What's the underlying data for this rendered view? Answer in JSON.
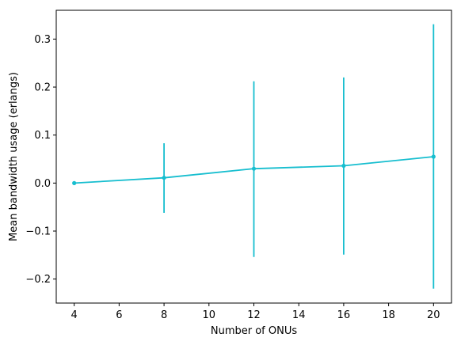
{
  "chart_data": {
    "type": "line",
    "xlabel": "Number of ONUs",
    "ylabel": "Mean bandwidth usage (erlangs)",
    "xlim": [
      3.2,
      20.8
    ],
    "ylim": [
      -0.25,
      0.36
    ],
    "x_ticks": [
      4,
      6,
      8,
      10,
      12,
      14,
      16,
      18,
      20
    ],
    "y_ticks": [
      -0.2,
      -0.1,
      0.0,
      0.1,
      0.2,
      0.3
    ],
    "x_tick_labels": [
      "4",
      "6",
      "8",
      "10",
      "12",
      "14",
      "16",
      "18",
      "20"
    ],
    "y_tick_labels": [
      "−0.2",
      "−0.1",
      "0.0",
      "0.1",
      "0.2",
      "0.3"
    ],
    "grid": false,
    "series": [
      {
        "color": "#17becf",
        "x": [
          4,
          8,
          12,
          16,
          20
        ],
        "y": [
          0.0,
          0.011,
          0.03,
          0.036,
          0.055
        ],
        "error_low": [
          0.0,
          -0.062,
          -0.154,
          -0.149,
          -0.22
        ],
        "error_high": [
          0.0,
          0.083,
          0.212,
          0.22,
          0.331
        ]
      }
    ]
  }
}
